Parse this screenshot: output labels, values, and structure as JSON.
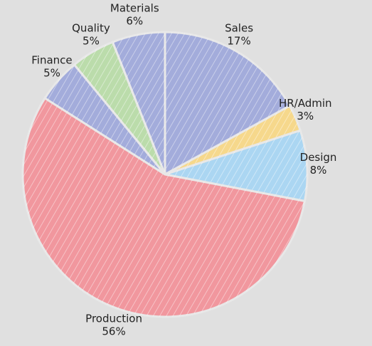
{
  "chart_data": {
    "type": "pie",
    "categories": [
      "Sales",
      "HR/Admin",
      "Design",
      "Production",
      "Finance",
      "Quality",
      "Materials"
    ],
    "values": [
      17,
      3,
      8,
      56,
      5,
      5,
      6
    ],
    "value_labels": [
      "17%",
      "3%",
      "8%",
      "56%",
      "5%",
      "5%",
      "6%"
    ],
    "colors": [
      "#a3acdb",
      "#f6d88c",
      "#abd6f2",
      "#f1979e",
      "#a3acdb",
      "#bbdcab",
      "#a3acdb"
    ]
  }
}
